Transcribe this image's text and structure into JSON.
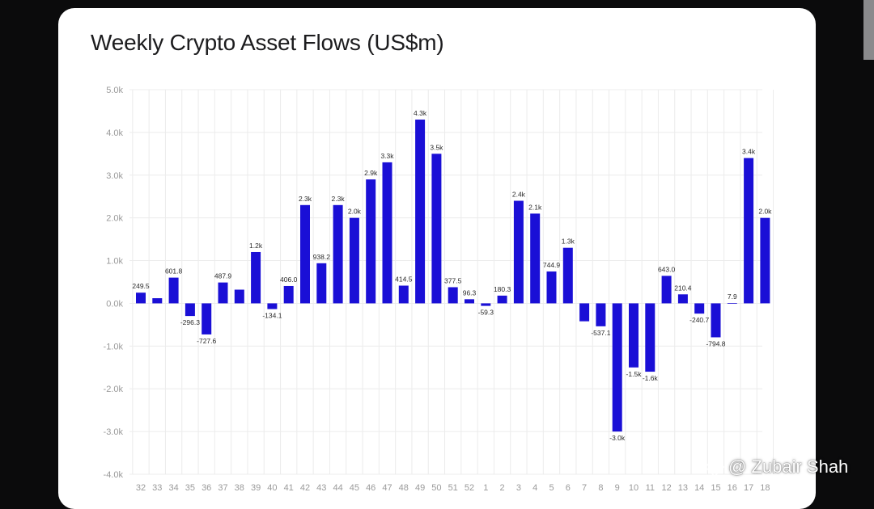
{
  "title": "Weekly Crypto Asset Flows (US$m)",
  "watermark": "@ Zubair Shah",
  "colors": {
    "bar": "#1a0fd6",
    "grid": "#ececec",
    "axis_text": "#9a9a9a",
    "label_text": "#2a2a2a"
  },
  "chart_data": {
    "type": "bar",
    "title": "Weekly Crypto Asset Flows (US$m)",
    "xlabel": "",
    "ylabel": "",
    "ylim": [
      -4000,
      5000
    ],
    "yticks": [
      5000,
      4000,
      3000,
      2000,
      1000,
      0,
      -1000,
      -2000,
      -3000,
      -4000
    ],
    "ytick_labels": [
      "5.0k",
      "4.0k",
      "3.0k",
      "2.0k",
      "1.0k",
      "0.0k",
      "-1.0k",
      "-2.0k",
      "-3.0k",
      "-4.0k"
    ],
    "grid": true,
    "categories": [
      "32",
      "33",
      "34",
      "35",
      "36",
      "37",
      "38",
      "39",
      "40",
      "41",
      "42",
      "43",
      "44",
      "45",
      "46",
      "47",
      "48",
      "49",
      "50",
      "51",
      "52",
      "1",
      "2",
      "3",
      "4",
      "5",
      "6",
      "7",
      "8",
      "9",
      "10",
      "11",
      "12",
      "13",
      "14",
      "15",
      "16",
      "17",
      "18"
    ],
    "values": [
      249.5,
      120,
      601.8,
      -296.3,
      -727.6,
      487.9,
      320,
      1200,
      -134.1,
      406.0,
      2300,
      938.2,
      2300,
      2000,
      2900,
      3300,
      414.5,
      4300,
      3500,
      377.5,
      96.3,
      -59.3,
      180.3,
      2400,
      2100,
      744.9,
      1300,
      -420,
      -537.1,
      -3000,
      -1500,
      -1600,
      643.0,
      210.4,
      -240.7,
      -794.8,
      7.9,
      3400,
      2000
    ],
    "data_labels": [
      "249.5",
      "",
      "601.8",
      "-296.3",
      "-727.6",
      "487.9",
      "",
      "1.2k",
      "-134.1",
      "406.0",
      "2.3k",
      "938.2",
      "2.3k",
      "2.0k",
      "2.9k",
      "3.3k",
      "414.5",
      "4.3k",
      "3.5k",
      "377.5",
      "96.3",
      "-59.3",
      "180.3",
      "2.4k",
      "2.1k",
      "744.9",
      "1.3k",
      "",
      "-537.1",
      "-3.0k",
      "-1.5k",
      "-1.6k",
      "643.0",
      "210.4",
      "-240.7",
      "-794.8",
      "7.9",
      "3.4k",
      "2.0k"
    ]
  }
}
